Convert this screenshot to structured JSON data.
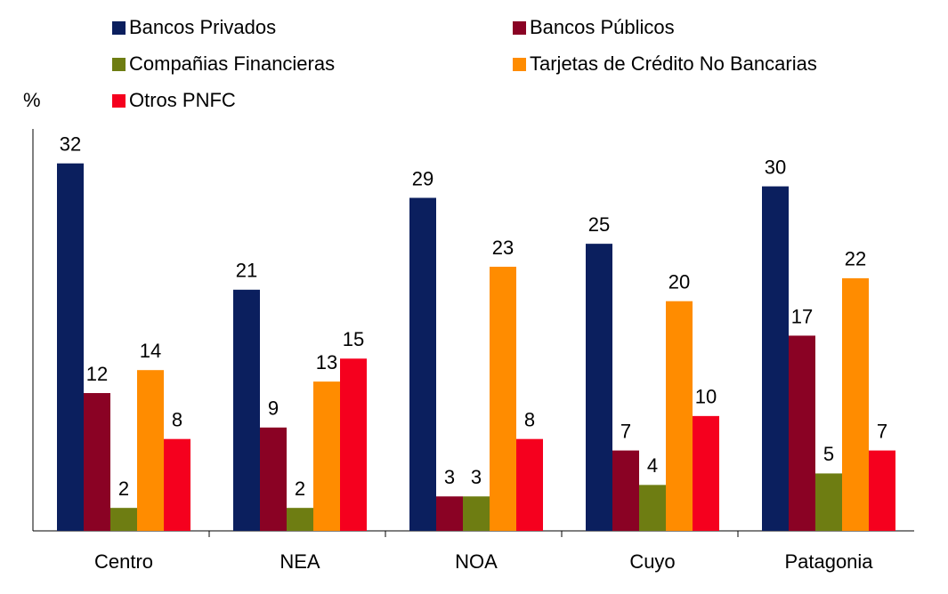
{
  "chart_data": {
    "type": "bar",
    "y_label": "%",
    "categories": [
      "Centro",
      "NEA",
      "NOA",
      "Cuyo",
      "Patagonia"
    ],
    "series": [
      {
        "name": "Bancos Privados",
        "color": "#0b1f5e",
        "values": [
          32,
          21,
          29,
          25,
          30
        ]
      },
      {
        "name": "Bancos Públicos",
        "color": "#8a0224",
        "values": [
          12,
          9,
          3,
          7,
          17
        ]
      },
      {
        "name": "Compañias Financieras",
        "color": "#6e7d12",
        "values": [
          2,
          2,
          3,
          4,
          5
        ]
      },
      {
        "name": "Tarjetas de Crédito No Bancarias",
        "color": "#ff8c00",
        "values": [
          14,
          13,
          23,
          20,
          22
        ]
      },
      {
        "name": "Otros PNFC",
        "color": "#f5001e",
        "values": [
          8,
          15,
          8,
          10,
          7
        ]
      }
    ],
    "ylim": [
      0,
      35
    ]
  }
}
